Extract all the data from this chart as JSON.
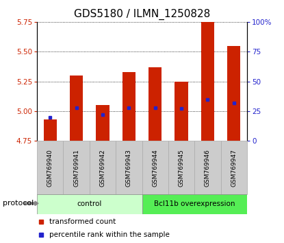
{
  "title": "GDS5180 / ILMN_1250828",
  "samples": [
    "GSM769940",
    "GSM769941",
    "GSM769942",
    "GSM769943",
    "GSM769944",
    "GSM769945",
    "GSM769946",
    "GSM769947"
  ],
  "transformed_counts": [
    4.93,
    5.3,
    5.05,
    5.33,
    5.37,
    5.25,
    5.75,
    5.55
  ],
  "percentile_ranks": [
    20,
    28,
    22,
    28,
    28,
    27,
    35,
    32
  ],
  "bar_bottom": 4.75,
  "ylim": [
    4.75,
    5.75
  ],
  "yticks": [
    4.75,
    5.0,
    5.25,
    5.5,
    5.75
  ],
  "right_yticks": [
    0,
    25,
    50,
    75,
    100
  ],
  "right_ylim": [
    0,
    100
  ],
  "bar_color": "#cc2200",
  "dot_color": "#2222cc",
  "title_fontsize": 11,
  "tick_color_left": "#cc2200",
  "tick_color_right": "#2222cc",
  "groups": [
    {
      "label": "control",
      "start": 0,
      "end": 4,
      "color": "#ccffcc"
    },
    {
      "label": "Bcl11b overexpression",
      "start": 4,
      "end": 8,
      "color": "#55ee55"
    }
  ],
  "protocol_label": "protocol",
  "legend_items": [
    {
      "color": "#cc2200",
      "label": "transformed count"
    },
    {
      "color": "#2222cc",
      "label": "percentile rank within the sample"
    }
  ],
  "bg_color": "#ffffff",
  "plot_bg": "#ffffff",
  "label_box_color": "#cccccc",
  "label_box_edge": "#aaaaaa"
}
